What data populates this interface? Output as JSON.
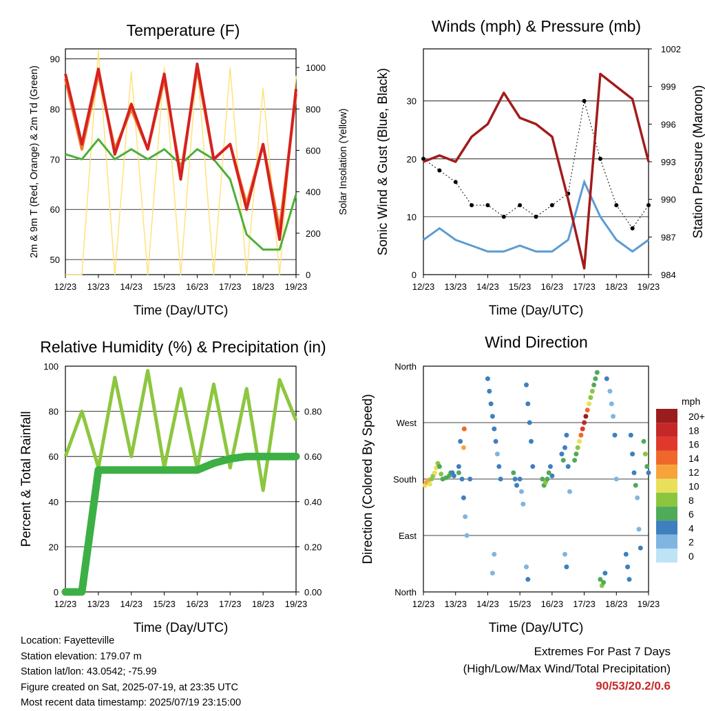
{
  "x_ticks": [
    "12/23",
    "13/23",
    "14/23",
    "15/23",
    "16/23",
    "17/23",
    "18/23",
    "19/23"
  ],
  "xlabel": "Time (Day/UTC)",
  "colors": {
    "temp": "#d62121",
    "temp9": "#f07c28",
    "dew": "#4caf35",
    "solar": "#ffe27a",
    "gust": "#000000",
    "wind": "#5b9bd5",
    "pressure": "#a31b1b",
    "rh": "#8dc63f",
    "precip": "#3cb044"
  },
  "chart_data": [
    {
      "type": "line",
      "title": "Temperature (F)",
      "ylabel": "2m & 9m T (Red, Orange) & 2m Td (Green)",
      "y2label": "Solar Insolation (Yellow)",
      "ylim": [
        47,
        92
      ],
      "y_ticks": [
        "50",
        "60",
        "70",
        "80",
        "90"
      ],
      "y2lim": [
        0,
        1090
      ],
      "y2_ticks": [
        "0",
        "200",
        "400",
        "600",
        "800",
        "1000"
      ],
      "x": [
        0,
        0.5,
        1,
        1.5,
        2,
        2.5,
        3,
        3.5,
        4,
        4.5,
        5,
        5.5,
        6,
        6.5,
        7
      ],
      "series": [
        {
          "values": [
            87,
            73,
            88,
            71,
            81,
            72,
            87,
            66,
            89,
            70,
            73,
            60,
            73,
            54,
            84
          ]
        },
        {
          "values": [
            86,
            72,
            87,
            72,
            80,
            72,
            86,
            67,
            88,
            70,
            73,
            61,
            73,
            56,
            83
          ]
        },
        {
          "values": [
            71,
            70,
            74,
            70,
            72,
            70,
            72,
            69,
            72,
            70,
            66,
            55,
            52,
            52,
            63
          ]
        },
        {
          "values": [
            0,
            0,
            1080,
            0,
            980,
            0,
            1000,
            0,
            1020,
            0,
            1000,
            0,
            900,
            0,
            960
          ]
        }
      ]
    },
    {
      "type": "line",
      "title": "Winds (mph) & Pressure (mb)",
      "ylabel": "Sonic Wind & Gust (Blue, Black)",
      "y2label": "Station Pressure (Maroon)",
      "ylim": [
        0,
        39
      ],
      "y_ticks": [
        "0",
        "10",
        "20",
        "30"
      ],
      "y2lim": [
        984,
        1002
      ],
      "y2_ticks": [
        "984",
        "987",
        "990",
        "993",
        "996",
        "999",
        "1002"
      ],
      "x": [
        0,
        0.5,
        1,
        1.5,
        2,
        2.5,
        3,
        3.5,
        4,
        4.5,
        5,
        5.5,
        6,
        6.5,
        7
      ],
      "series": [
        {
          "values": [
            20,
            18,
            16,
            12,
            12,
            10,
            12,
            10,
            12,
            14,
            30,
            20,
            12,
            8,
            12
          ]
        },
        {
          "values": [
            6,
            8,
            6,
            5,
            4,
            4,
            5,
            4,
            4,
            6,
            16,
            10,
            6,
            4,
            6
          ]
        },
        {
          "values": [
            993,
            993.5,
            993,
            995,
            996,
            998.5,
            996.5,
            996,
            995,
            990,
            984.5,
            1000,
            999,
            998,
            993
          ]
        }
      ]
    },
    {
      "type": "line",
      "title": "Relative Humidity (%) & Precipitation (in)",
      "ylabel": "Percent & Total Rainfall",
      "ylim": [
        0,
        100
      ],
      "y_ticks": [
        "0",
        "20",
        "40",
        "60",
        "80",
        "100"
      ],
      "y2lim": [
        0,
        1
      ],
      "y2_ticks": [
        "0.00",
        "0.20",
        "0.40",
        "0.60",
        "0.80"
      ],
      "x": [
        0,
        0.5,
        1,
        1.5,
        2,
        2.5,
        3,
        3.5,
        4,
        4.5,
        5,
        5.5,
        6,
        6.5,
        7
      ],
      "series": [
        {
          "values": [
            60,
            80,
            55,
            95,
            60,
            98,
            55,
            90,
            55,
            92,
            55,
            90,
            45,
            94,
            76
          ]
        },
        {
          "values": [
            0,
            0,
            0.54,
            0.54,
            0.54,
            0.54,
            0.54,
            0.54,
            0.54,
            0.57,
            0.59,
            0.6,
            0.6,
            0.6,
            0.6
          ]
        }
      ]
    },
    {
      "type": "scatter",
      "title": "Wind Direction",
      "ylabel": "Direction (Colored By Speed)",
      "y_ticks": [
        "North",
        "East",
        "South",
        "West",
        "North"
      ],
      "legend_title": "mph",
      "legend_labels": [
        "20+",
        "18",
        "16",
        "14",
        "12",
        "10",
        "8",
        "6",
        "4",
        "2",
        "0"
      ],
      "legend_colors": [
        "#9b1c1c",
        "#c62828",
        "#e0392b",
        "#f0672a",
        "#f7a33c",
        "#e8e05a",
        "#8cc63f",
        "#4faa5a",
        "#3f7fbf",
        "#7fb5e0",
        "#bde3f7"
      ],
      "points": [
        [
          0.05,
          170,
          10
        ],
        [
          0.1,
          175,
          11
        ],
        [
          0.15,
          178,
          12
        ],
        [
          0.2,
          172,
          9
        ],
        [
          0.25,
          180,
          8
        ],
        [
          0.3,
          185,
          7
        ],
        [
          0.35,
          190,
          10
        ],
        [
          0.4,
          198,
          9
        ],
        [
          0.45,
          205,
          8
        ],
        [
          0.5,
          200,
          6
        ],
        [
          0.55,
          188,
          7
        ],
        [
          0.6,
          180,
          6
        ],
        [
          0.7,
          182,
          5
        ],
        [
          0.8,
          185,
          5
        ],
        [
          0.85,
          190,
          6
        ],
        [
          0.9,
          190,
          4
        ],
        [
          0.95,
          185,
          3
        ],
        [
          1.1,
          200,
          4
        ],
        [
          1.15,
          240,
          3
        ],
        [
          1.2,
          180,
          4
        ],
        [
          1.25,
          150,
          3
        ],
        [
          1.3,
          120,
          2
        ],
        [
          1.35,
          90,
          2
        ],
        [
          1.25,
          230,
          12
        ],
        [
          1.27,
          260,
          14
        ],
        [
          1.1,
          190,
          5
        ],
        [
          1.45,
          180,
          3
        ],
        [
          2.0,
          340,
          4
        ],
        [
          2.05,
          320,
          3
        ],
        [
          2.1,
          300,
          4
        ],
        [
          2.15,
          280,
          4
        ],
        [
          2.2,
          260,
          3
        ],
        [
          2.25,
          240,
          3
        ],
        [
          2.3,
          220,
          2
        ],
        [
          2.35,
          200,
          3
        ],
        [
          2.4,
          180,
          4
        ],
        [
          2.15,
          30,
          2
        ],
        [
          2.2,
          60,
          2
        ],
        [
          2.8,
          190,
          5
        ],
        [
          2.85,
          180,
          4
        ],
        [
          2.9,
          170,
          4
        ],
        [
          3.0,
          180,
          3
        ],
        [
          3.05,
          160,
          2
        ],
        [
          3.1,
          140,
          2
        ],
        [
          3.2,
          330,
          4
        ],
        [
          3.25,
          300,
          3
        ],
        [
          3.3,
          270,
          4
        ],
        [
          3.35,
          240,
          4
        ],
        [
          3.4,
          200,
          3
        ],
        [
          3.2,
          40,
          2
        ],
        [
          3.25,
          20,
          4
        ],
        [
          3.7,
          180,
          5
        ],
        [
          3.75,
          170,
          6
        ],
        [
          3.8,
          175,
          7
        ],
        [
          3.85,
          180,
          6
        ],
        [
          3.9,
          190,
          6
        ],
        [
          3.95,
          200,
          4
        ],
        [
          4.0,
          185,
          3
        ],
        [
          4.3,
          220,
          4
        ],
        [
          4.35,
          210,
          5
        ],
        [
          4.4,
          230,
          4
        ],
        [
          4.45,
          250,
          3
        ],
        [
          4.5,
          200,
          3
        ],
        [
          4.55,
          160,
          2
        ],
        [
          4.4,
          60,
          2
        ],
        [
          4.45,
          40,
          3
        ],
        [
          4.7,
          210,
          6
        ],
        [
          4.75,
          220,
          6
        ],
        [
          4.8,
          230,
          7
        ],
        [
          4.85,
          240,
          10
        ],
        [
          4.9,
          250,
          13
        ],
        [
          4.95,
          260,
          16
        ],
        [
          5.0,
          270,
          18
        ],
        [
          5.05,
          280,
          20
        ],
        [
          5.1,
          290,
          13
        ],
        [
          5.15,
          300,
          9
        ],
        [
          5.2,
          310,
          8
        ],
        [
          5.25,
          320,
          7
        ],
        [
          5.3,
          330,
          6
        ],
        [
          5.35,
          340,
          6
        ],
        [
          5.4,
          350,
          5
        ],
        [
          5.5,
          20,
          6
        ],
        [
          5.55,
          10,
          7
        ],
        [
          5.6,
          15,
          6
        ],
        [
          5.65,
          30,
          4
        ],
        [
          5.7,
          340,
          3
        ],
        [
          5.8,
          320,
          2
        ],
        [
          5.85,
          300,
          2
        ],
        [
          5.9,
          280,
          2
        ],
        [
          5.95,
          250,
          3
        ],
        [
          6.0,
          180,
          2
        ],
        [
          6.3,
          60,
          3
        ],
        [
          6.35,
          40,
          4
        ],
        [
          6.4,
          20,
          4
        ],
        [
          6.45,
          250,
          4
        ],
        [
          6.5,
          220,
          3
        ],
        [
          6.55,
          190,
          3
        ],
        [
          6.6,
          170,
          5
        ],
        [
          6.65,
          150,
          2
        ],
        [
          6.7,
          100,
          2
        ],
        [
          6.75,
          70,
          3
        ],
        [
          6.85,
          240,
          6
        ],
        [
          6.9,
          220,
          7
        ],
        [
          6.95,
          200,
          5
        ],
        [
          7.0,
          190,
          4
        ]
      ]
    }
  ],
  "info": {
    "location": "Location: Fayetteville",
    "elevation": "Station elevation: 179.07 m",
    "latlon": "Station lat/lon: 43.0542; -75.99",
    "created": "Figure created on Sat, 2025-07-19, at 23:35 UTC",
    "recent": "Most recent data timestamp: 2025/07/19 23:15:00"
  },
  "extremes": {
    "line1": "Extremes For Past 7 Days",
    "line2": "(High/Low/Max Wind/Total Precipitation)",
    "values": "90/53/20.2/0.6"
  }
}
